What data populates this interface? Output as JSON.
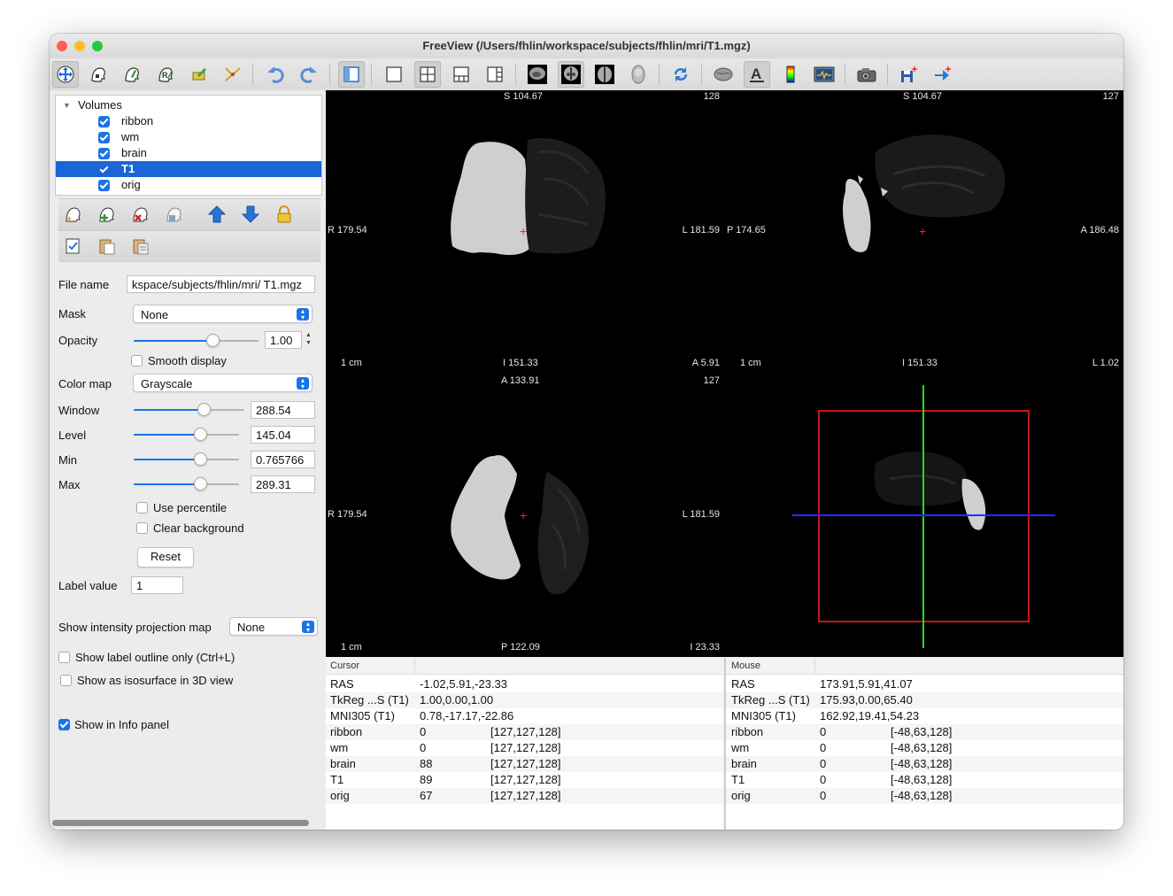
{
  "window": {
    "title": "FreeView (/Users/fhlin/workspace/subjects/fhlin/mri/T1.mgz)",
    "traffic_colors": [
      "#fe5f57",
      "#febc2e",
      "#28c840"
    ]
  },
  "toolbar": {
    "icons": [
      "navigate-icon",
      "voxel-edit-icon",
      "recon-edit-icon",
      "roi-edit-icon",
      "point-set-edit-icon",
      "contour-icon",
      "undo-icon",
      "redo-icon",
      "toggle-panel-icon",
      "layout-1x1-icon",
      "layout-2x2-icon",
      "layout-1-3-icon",
      "layout-1-3-horizontal-icon",
      "sagittal-view-icon",
      "coronal-view-icon",
      "axial-view-icon",
      "3d-view-icon",
      "reset-view-icon",
      "surface-icon",
      "text-annotation-icon",
      "colorbar-icon",
      "info-panel-icon",
      "snapshot-icon",
      "save-point-icon",
      "goto-point-icon"
    ]
  },
  "layers": {
    "group_label": "Volumes",
    "items": [
      {
        "label": "ribbon",
        "checked": true,
        "selected": false
      },
      {
        "label": "wm",
        "checked": true,
        "selected": false
      },
      {
        "label": "brain",
        "checked": true,
        "selected": false
      },
      {
        "label": "T1",
        "checked": true,
        "selected": true
      },
      {
        "label": "orig",
        "checked": true,
        "selected": false
      }
    ]
  },
  "properties": {
    "file_name_label": "File name",
    "file_name_value": "kspace/subjects/fhlin/mri/ T1.mgz",
    "mask_label": "Mask",
    "mask_value": "None",
    "opacity_label": "Opacity",
    "opacity_value": "1.00",
    "opacity_level": 0.63,
    "smooth_display_label": "Smooth display",
    "color_map_label": "Color map",
    "color_map_value": "Grayscale",
    "window_label": "Window",
    "window_value": "288.54",
    "window_level": 0.63,
    "level_label": "Level",
    "level_value": "145.04",
    "level_level": 0.63,
    "min_label": "Min",
    "min_value": "0.765766",
    "min_level": 0.63,
    "max_label": "Max",
    "max_value": "289.31",
    "max_level": 0.63,
    "use_percentile_label": "Use percentile",
    "clear_background_label": "Clear background",
    "reset_label": "Reset",
    "label_value_label": "Label value",
    "label_value": "1",
    "projection_label": "Show intensity projection map",
    "projection_value": "None",
    "label_outline_label": "Show label outline only (Ctrl+L)",
    "isosurface_label": "Show as isosurface in 3D view",
    "show_info_label": "Show in Info panel"
  },
  "views": {
    "coronal": {
      "top": "S 104.67",
      "slice": "128",
      "left": "R 179.54",
      "right": "L 181.59",
      "bottom": "I 151.33",
      "corner": "A 5.91",
      "scale": "1 cm"
    },
    "sagittal": {
      "top": "S 104.67",
      "slice": "127",
      "left": "P 174.65",
      "right": "A 186.48",
      "bottom": "I 151.33",
      "corner": "L 1.02",
      "scale": "1 cm"
    },
    "axial": {
      "top": "A 133.91",
      "slice": "127",
      "left": "R 179.54",
      "right": "L 181.59",
      "bottom": "P 122.09",
      "corner": "I 23.33",
      "scale": "1 cm"
    }
  },
  "info_cursor": {
    "header": "Cursor",
    "rows": [
      {
        "name": "RAS",
        "value": "-1.02,5.91,-23.33",
        "coord": ""
      },
      {
        "name": "TkReg ...S (T1)",
        "value": "1.00,0.00,1.00",
        "coord": ""
      },
      {
        "name": "MNI305 (T1)",
        "value": "0.78,-17.17,-22.86",
        "coord": ""
      },
      {
        "name": "ribbon",
        "value": "0",
        "coord": "[127,127,128]"
      },
      {
        "name": "wm",
        "value": "0",
        "coord": "[127,127,128]"
      },
      {
        "name": "brain",
        "value": "88",
        "coord": "[127,127,128]"
      },
      {
        "name": "T1",
        "value": "89",
        "coord": "[127,127,128]"
      },
      {
        "name": "orig",
        "value": "67",
        "coord": "[127,127,128]"
      }
    ]
  },
  "info_mouse": {
    "header": "Mouse",
    "rows": [
      {
        "name": "RAS",
        "value": "173.91,5.91,41.07",
        "coord": ""
      },
      {
        "name": "TkReg ...S (T1)",
        "value": "175.93,0.00,65.40",
        "coord": ""
      },
      {
        "name": "MNI305 (T1)",
        "value": "162.92,19.41,54.23",
        "coord": ""
      },
      {
        "name": "ribbon",
        "value": "0",
        "coord": "[-48,63,128]"
      },
      {
        "name": "wm",
        "value": "0",
        "coord": "[-48,63,128]"
      },
      {
        "name": "brain",
        "value": "0",
        "coord": "[-48,63,128]"
      },
      {
        "name": "T1",
        "value": "0",
        "coord": "[-48,63,128]"
      },
      {
        "name": "orig",
        "value": "0",
        "coord": "[-48,63,128]"
      }
    ]
  },
  "colors": {
    "accent": "#1a73e8",
    "selection": "#1a66d6",
    "crosshair": "#ff2020"
  }
}
